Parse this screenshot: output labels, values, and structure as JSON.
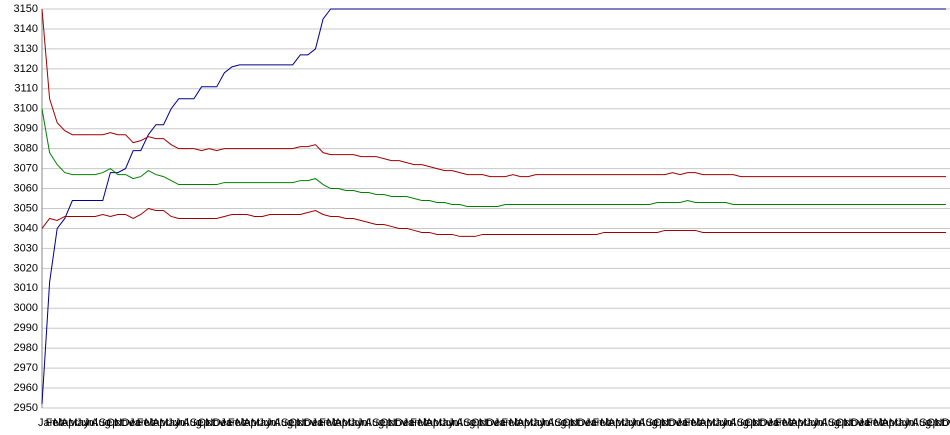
{
  "chart_data": {
    "type": "line",
    "categories": [
      "Jan",
      "Feb",
      "Mar",
      "Apr",
      "May",
      "Jun",
      "Jul",
      "Aug",
      "Sep",
      "Oct",
      "Nov",
      "Dec",
      "Jan",
      "Feb",
      "Mar",
      "Apr",
      "May",
      "Jun",
      "Jul",
      "Aug",
      "Sep",
      "Oct",
      "Nov",
      "Dec",
      "Jan",
      "Feb",
      "Mar",
      "Apr",
      "May",
      "Jun",
      "Jul",
      "Aug",
      "Sep",
      "Oct",
      "Nov",
      "Dec",
      "Jan",
      "Feb",
      "Mar",
      "Apr",
      "May",
      "Jun",
      "Jul",
      "Aug",
      "Sep",
      "Oct",
      "Nov",
      "Dec",
      "Jan",
      "Feb",
      "Mar",
      "Apr",
      "May",
      "Jun",
      "Jul",
      "Aug",
      "Sep",
      "Oct",
      "Nov",
      "Dec",
      "Jan",
      "Feb",
      "Mar",
      "Apr",
      "May",
      "Jun",
      "Jul",
      "Aug",
      "Sep",
      "Oct",
      "Nov",
      "Dec",
      "Jan",
      "Feb",
      "Mar",
      "Apr",
      "May",
      "Jun",
      "Jul",
      "Aug",
      "Sep",
      "Oct",
      "Nov",
      "Dec",
      "Jan",
      "Feb",
      "Mar",
      "Apr",
      "May",
      "Jun",
      "Jul",
      "Aug",
      "Sep",
      "Oct",
      "Nov",
      "Dec",
      "Jan",
      "Feb",
      "Mar",
      "Apr",
      "May",
      "Jun",
      "Jul",
      "Aug",
      "Sep",
      "Oct",
      "Nov",
      "Dec",
      "Jan",
      "Feb",
      "Mar",
      "Apr",
      "May",
      "Jun",
      "Jul",
      "Aug",
      "Sep",
      "Oct",
      "Nov",
      "Dec"
    ],
    "series": [
      {
        "color": "#00008b",
        "values": [
          2952,
          3013,
          3040,
          3045,
          3054,
          3054,
          3054,
          3054,
          3054,
          3068,
          3068,
          3070,
          3079,
          3079,
          3087,
          3092,
          3092,
          3100,
          3105,
          3105,
          3105,
          3111,
          3111,
          3111,
          3118,
          3121,
          3122,
          3122,
          3122,
          3122,
          3122,
          3122,
          3122,
          3122,
          3127,
          3127,
          3130,
          3145,
          3150,
          3150,
          3150,
          3150,
          3150,
          3150,
          3150,
          3150,
          3150,
          3150,
          3150,
          3150,
          3150,
          3150,
          3150,
          3150,
          3150,
          3150,
          3150,
          3150,
          3150,
          3150,
          3150,
          3150,
          3150,
          3150,
          3150,
          3150,
          3150,
          3150,
          3150,
          3150,
          3150,
          3150,
          3150,
          3150,
          3150,
          3150,
          3150,
          3150,
          3150,
          3150,
          3150,
          3150,
          3150,
          3150,
          3150,
          3150,
          3150,
          3150,
          3150,
          3150,
          3150,
          3150,
          3150,
          3150,
          3150,
          3150,
          3150,
          3150,
          3150,
          3150,
          3150,
          3150,
          3150,
          3150,
          3150,
          3150,
          3150,
          3150,
          3150,
          3150,
          3150,
          3150,
          3150,
          3150,
          3150,
          3150,
          3150,
          3150,
          3150,
          3150
        ]
      },
      {
        "color": "#a00000",
        "values": [
          3150,
          3105,
          3093,
          3089,
          3087,
          3087,
          3087,
          3087,
          3087,
          3088,
          3087,
          3087,
          3083,
          3084,
          3086,
          3085,
          3085,
          3082,
          3080,
          3080,
          3080,
          3079,
          3080,
          3079,
          3080,
          3080,
          3080,
          3080,
          3080,
          3080,
          3080,
          3080,
          3080,
          3080,
          3081,
          3081,
          3082,
          3078,
          3077,
          3077,
          3077,
          3077,
          3076,
          3076,
          3076,
          3075,
          3074,
          3074,
          3073,
          3072,
          3072,
          3071,
          3070,
          3069,
          3069,
          3068,
          3067,
          3067,
          3067,
          3066,
          3066,
          3066,
          3067,
          3066,
          3066,
          3067,
          3067,
          3067,
          3067,
          3067,
          3067,
          3067,
          3067,
          3067,
          3067,
          3067,
          3067,
          3067,
          3067,
          3067,
          3067,
          3067,
          3067,
          3068,
          3067,
          3068,
          3068,
          3067,
          3067,
          3067,
          3067,
          3067,
          3066,
          3066,
          3066,
          3066,
          3066,
          3066,
          3066,
          3066,
          3066,
          3066,
          3066,
          3066,
          3066,
          3066,
          3066,
          3066,
          3066,
          3066,
          3066,
          3066,
          3066,
          3066,
          3066,
          3066,
          3066,
          3066,
          3066,
          3066
        ]
      },
      {
        "color": "#008000",
        "values": [
          3100,
          3078,
          3072,
          3068,
          3067,
          3067,
          3067,
          3067,
          3068,
          3070,
          3067,
          3067,
          3065,
          3066,
          3069,
          3067,
          3066,
          3064,
          3062,
          3062,
          3062,
          3062,
          3062,
          3062,
          3063,
          3063,
          3063,
          3063,
          3063,
          3063,
          3063,
          3063,
          3063,
          3063,
          3064,
          3064,
          3065,
          3062,
          3060,
          3060,
          3059,
          3059,
          3058,
          3058,
          3057,
          3057,
          3056,
          3056,
          3056,
          3055,
          3054,
          3054,
          3053,
          3053,
          3052,
          3052,
          3051,
          3051,
          3051,
          3051,
          3051,
          3052,
          3052,
          3052,
          3052,
          3052,
          3052,
          3052,
          3052,
          3052,
          3052,
          3052,
          3052,
          3052,
          3052,
          3052,
          3052,
          3052,
          3052,
          3052,
          3052,
          3053,
          3053,
          3053,
          3053,
          3054,
          3053,
          3053,
          3053,
          3053,
          3053,
          3052,
          3052,
          3052,
          3052,
          3052,
          3052,
          3052,
          3052,
          3052,
          3052,
          3052,
          3052,
          3052,
          3052,
          3052,
          3052,
          3052,
          3052,
          3052,
          3052,
          3052,
          3052,
          3052,
          3052,
          3052,
          3052,
          3052,
          3052,
          3052
        ]
      },
      {
        "color": "#a00000",
        "values": [
          3040,
          3045,
          3044,
          3046,
          3046,
          3046,
          3046,
          3046,
          3047,
          3046,
          3047,
          3047,
          3045,
          3047,
          3050,
          3049,
          3049,
          3046,
          3045,
          3045,
          3045,
          3045,
          3045,
          3045,
          3046,
          3047,
          3047,
          3047,
          3046,
          3046,
          3047,
          3047,
          3047,
          3047,
          3047,
          3048,
          3049,
          3047,
          3046,
          3046,
          3045,
          3045,
          3044,
          3043,
          3042,
          3042,
          3041,
          3040,
          3040,
          3039,
          3038,
          3038,
          3037,
          3037,
          3037,
          3036,
          3036,
          3036,
          3037,
          3037,
          3037,
          3037,
          3037,
          3037,
          3037,
          3037,
          3037,
          3037,
          3037,
          3037,
          3037,
          3037,
          3037,
          3037,
          3038,
          3038,
          3038,
          3038,
          3038,
          3038,
          3038,
          3038,
          3039,
          3039,
          3039,
          3039,
          3039,
          3038,
          3038,
          3038,
          3038,
          3038,
          3038,
          3038,
          3038,
          3038,
          3038,
          3038,
          3038,
          3038,
          3038,
          3038,
          3038,
          3038,
          3038,
          3038,
          3038,
          3038,
          3038,
          3038,
          3038,
          3038,
          3038,
          3038,
          3038,
          3038,
          3038,
          3038,
          3038,
          3038
        ]
      }
    ],
    "ylim": [
      2950,
      3150
    ],
    "yticks": [
      2950,
      2960,
      2970,
      2980,
      2990,
      3000,
      3010,
      3020,
      3030,
      3040,
      3050,
      3060,
      3070,
      3080,
      3090,
      3100,
      3110,
      3120,
      3130,
      3140,
      3150
    ],
    "grid": true
  }
}
